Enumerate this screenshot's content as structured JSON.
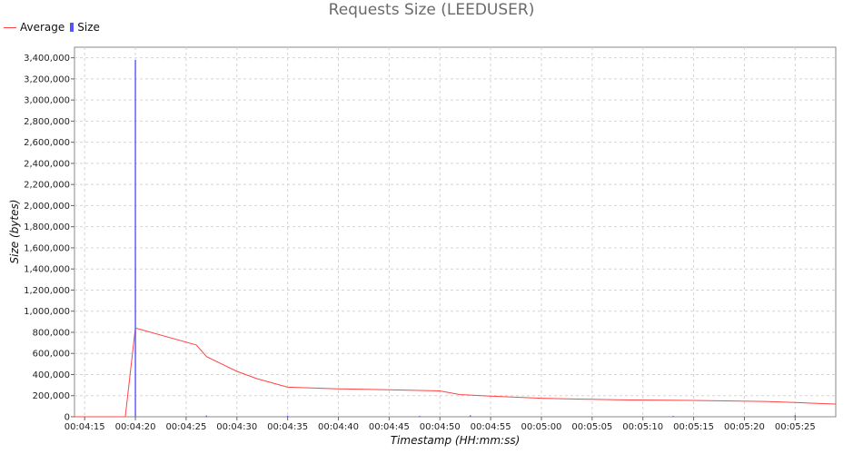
{
  "chart_data": {
    "type": "line",
    "title": "Requests Size (LEEDUSER)",
    "xlabel": "Timestamp (HH:mm:ss)",
    "ylabel": "Size (bytes)",
    "xlim": [
      "00:04:14",
      "00:05:29"
    ],
    "ylim": [
      0,
      3500000
    ],
    "grid": true,
    "legend_position": "top-left",
    "x_ticks": [
      "00:04:15",
      "00:04:20",
      "00:04:25",
      "00:04:30",
      "00:04:35",
      "00:04:40",
      "00:04:45",
      "00:04:50",
      "00:04:55",
      "00:05:00",
      "00:05:05",
      "00:05:10",
      "00:05:15",
      "00:05:20",
      "00:05:25"
    ],
    "y_ticks": [
      "0",
      "200,000",
      "400,000",
      "600,000",
      "800,000",
      "1,000,000",
      "1,200,000",
      "1,400,000",
      "1,600,000",
      "1,800,000",
      "2,000,000",
      "2,200,000",
      "2,400,000",
      "2,600,000",
      "2,800,000",
      "3,000,000",
      "3,200,000",
      "3,400,000"
    ],
    "series": [
      {
        "name": "Average",
        "kind": "line",
        "color": "#ff4444",
        "points": [
          [
            "00:04:14",
            0
          ],
          [
            "00:04:19",
            0
          ],
          [
            "00:04:20",
            840000
          ],
          [
            "00:04:26",
            680000
          ],
          [
            "00:04:27",
            570000
          ],
          [
            "00:04:30",
            430000
          ],
          [
            "00:04:32",
            360000
          ],
          [
            "00:04:35",
            280000
          ],
          [
            "00:04:40",
            265000
          ],
          [
            "00:04:45",
            255000
          ],
          [
            "00:04:50",
            245000
          ],
          [
            "00:04:52",
            210000
          ],
          [
            "00:04:55",
            195000
          ],
          [
            "00:05:00",
            175000
          ],
          [
            "00:05:05",
            165000
          ],
          [
            "00:05:08",
            160000
          ],
          [
            "00:05:15",
            155000
          ],
          [
            "00:05:22",
            145000
          ],
          [
            "00:05:25",
            135000
          ],
          [
            "00:05:29",
            120000
          ]
        ]
      },
      {
        "name": "Size",
        "kind": "bar",
        "color": "#5555ff",
        "points": [
          [
            "00:04:20",
            3380000
          ],
          [
            "00:04:27",
            12000
          ],
          [
            "00:04:35",
            10000
          ],
          [
            "00:04:48",
            8000
          ],
          [
            "00:04:53",
            14000
          ],
          [
            "00:05:13",
            8000
          ],
          [
            "00:05:25",
            16000
          ]
        ]
      }
    ]
  }
}
